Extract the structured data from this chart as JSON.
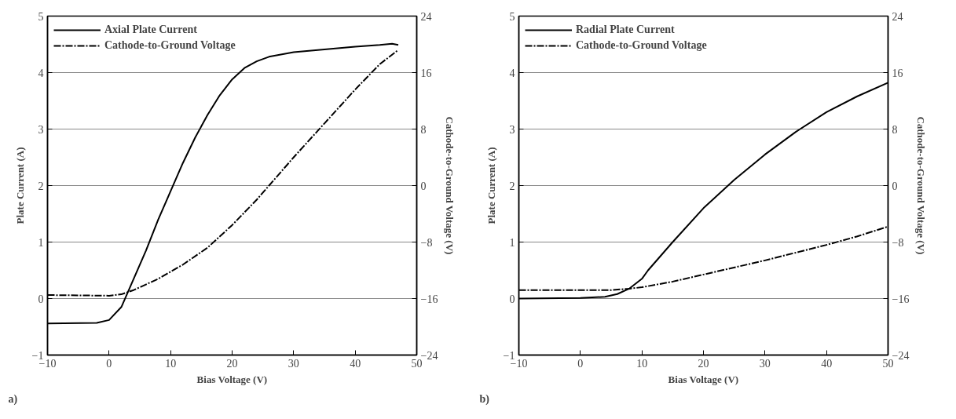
{
  "chart_data": [
    {
      "type": "line",
      "xlabel": "Bias Voltage (V)",
      "ylabel": "Plate Current (A)",
      "y2label": "Cathode-to-Ground Voltage (V)",
      "annotations": [
        "a)"
      ],
      "xlim": [
        -10,
        50
      ],
      "xticks": [
        -10,
        0,
        10,
        20,
        30,
        40,
        50
      ],
      "ylim": [
        -1,
        5
      ],
      "yticks": [
        -1,
        0,
        1,
        2,
        3,
        4,
        5
      ],
      "y2lim": [
        -24,
        24
      ],
      "y2ticks": [
        -24,
        -16,
        -8,
        0,
        8,
        16,
        24
      ],
      "grid": "y",
      "legend": "top left",
      "series": [
        {
          "name": "Axial Plate Current",
          "color": "#000000",
          "line_style": "solid",
          "x": [
            -10,
            -2,
            0,
            2,
            4,
            6,
            8,
            10,
            12,
            14,
            16,
            18,
            20,
            22,
            24,
            26,
            30,
            35,
            40,
            44,
            46,
            47
          ],
          "values": [
            -0.44,
            -0.43,
            -0.38,
            -0.15,
            0.35,
            0.85,
            1.4,
            1.9,
            2.4,
            2.85,
            3.25,
            3.6,
            3.88,
            4.08,
            4.2,
            4.28,
            4.36,
            4.41,
            4.46,
            4.49,
            4.51,
            4.49
          ]
        },
        {
          "name": "Cathode-to-Ground Voltage",
          "color": "#000000",
          "line_style": "dashdot",
          "axis": "y2",
          "x": [
            -10,
            0,
            2,
            4,
            8,
            12,
            16,
            20,
            24,
            26,
            30,
            35,
            40,
            44,
            47
          ],
          "values": [
            -15.5,
            -15.6,
            -15.4,
            -14.8,
            -13.2,
            -11.2,
            -8.8,
            -5.6,
            -2,
            0,
            4,
            8.8,
            13.6,
            17.2,
            19.2
          ]
        }
      ]
    },
    {
      "type": "line",
      "xlabel": "Bias Voltage (V)",
      "ylabel": "Plate Current (A)",
      "y2label": "Cathode-to-Ground Voltage (V)",
      "annotations": [
        "b)"
      ],
      "xlim": [
        -10,
        50
      ],
      "xticks": [
        -10,
        0,
        10,
        20,
        30,
        40,
        50
      ],
      "ylim": [
        -1,
        5
      ],
      "yticks": [
        -1,
        0,
        1,
        2,
        3,
        4,
        5
      ],
      "y2lim": [
        -24,
        24
      ],
      "y2ticks": [
        -24,
        -16,
        -8,
        0,
        8,
        16,
        24
      ],
      "grid": "y",
      "legend": "top left",
      "series": [
        {
          "name": "Radial Plate Current",
          "color": "#000000",
          "line_style": "solid",
          "x": [
            -10,
            0,
            4,
            6,
            8,
            10,
            11,
            15,
            20,
            25,
            30,
            35,
            40,
            45,
            50
          ],
          "values": [
            0.0,
            0.01,
            0.03,
            0.08,
            0.18,
            0.35,
            0.5,
            1.0,
            1.6,
            2.1,
            2.55,
            2.95,
            3.3,
            3.58,
            3.82
          ]
        },
        {
          "name": "Cathode-to-Ground Voltage",
          "color": "#000000",
          "line_style": "dashdot",
          "axis": "y2",
          "x": [
            -10,
            5,
            8,
            10,
            15,
            20,
            30,
            40,
            45,
            50
          ],
          "values": [
            -14.8,
            -14.8,
            -14.6,
            -14.4,
            -13.6,
            -12.6,
            -10.6,
            -8.4,
            -7.2,
            -5.8
          ]
        }
      ]
    }
  ]
}
